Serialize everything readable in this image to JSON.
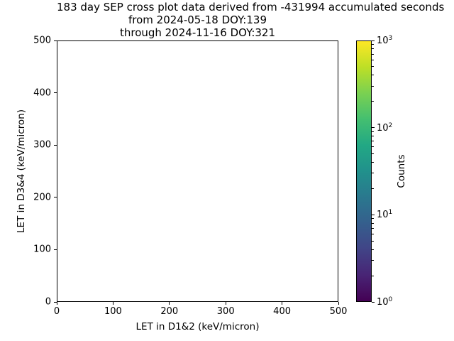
{
  "figure": {
    "background": "#ffffff",
    "title_lines": [
      "183 day SEP cross plot data derived from -431994 accumulated seconds",
      "from 2024-05-18 DOY:139",
      "through 2024-11-16 DOY:321"
    ]
  },
  "chart_data": {
    "type": "heatmap",
    "title": "183 day SEP cross plot data derived from -431994 accumulated seconds\nfrom 2024-05-18 DOY:139\nthrough 2024-11-16 DOY:321",
    "xlabel": "LET in D1&2 (keV/micron)",
    "ylabel": "LET in D3&4 (keV/micron)",
    "xlim": [
      0,
      500
    ],
    "ylim": [
      0,
      500
    ],
    "xticks": [
      0,
      100,
      200,
      300,
      400,
      500
    ],
    "yticks": [
      0,
      100,
      200,
      300,
      400,
      500
    ],
    "grid": false,
    "legend": null,
    "bins": [],
    "note": "plot area is empty - no 2D histogram bins rendered",
    "colorbar": {
      "label": "Counts",
      "colormap": "viridis",
      "scale": "log",
      "range": [
        1,
        1000
      ],
      "major_tick_exponents": [
        0,
        1,
        2,
        3
      ],
      "major_tick_labels": [
        "10^0",
        "10^1",
        "10^2",
        "10^3"
      ]
    }
  },
  "colors": {
    "background": "#ffffff",
    "axis": "#000000",
    "text": "#000000",
    "viridis_stops": [
      "#440154",
      "#482475",
      "#414487",
      "#355f8d",
      "#2a788e",
      "#21918c",
      "#22a884",
      "#44bf70",
      "#7ad151",
      "#bddf26",
      "#fde725"
    ]
  }
}
